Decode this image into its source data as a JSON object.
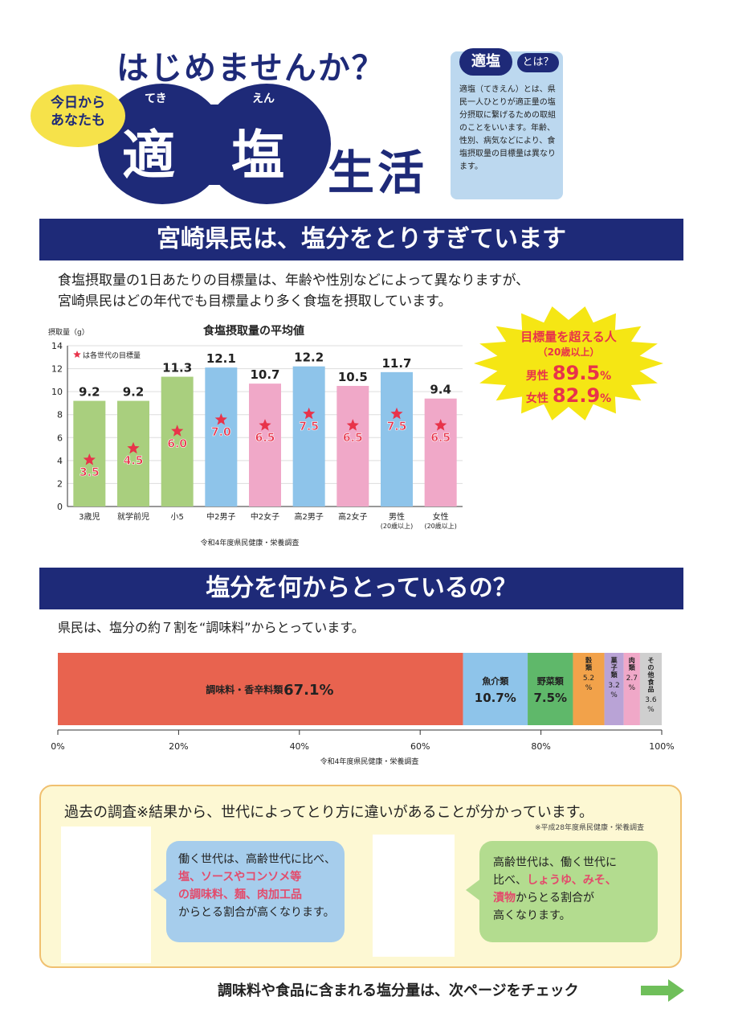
{
  "header": {
    "headline": "はじめませんか？",
    "bubble_line1": "今日から",
    "bubble_line2": "あなたも",
    "title_kanji1": "適",
    "title_kanji2": "塩",
    "ruby1": "てき",
    "ruby2": "えん",
    "title_suffix": "生活"
  },
  "definition": {
    "pill": "適塩",
    "toha": "とは？",
    "text": "適塩（てきえん）とは、県民一人ひとりが適正量の塩分摂取に繋げるための取組のことをいいます。年齢、性別、病気などにより、食塩摂取量の目標量は異なります。"
  },
  "section1": {
    "banner": "宮崎県民は、塩分をとりすぎています",
    "lead1": "食塩摂取量の1日あたりの目標量は、年齢や性別などによって異なりますが、",
    "lead2": "宮崎県民はどの年代でも目標量より多く食塩を摂取しています。"
  },
  "burst": {
    "title": "目標量を超える人",
    "sub": "（20歳以上）",
    "male_label": "男性",
    "male_value": "89.5",
    "female_label": "女性",
    "female_value": "82.9",
    "pct": "%",
    "color": "#f5e614"
  },
  "chart_data": [
    {
      "type": "bar",
      "title": "食塩摂取量の平均値",
      "ylabel": "摂取量（g）",
      "ylim": [
        0,
        14
      ],
      "yticks": [
        0,
        2,
        4,
        6,
        8,
        10,
        12,
        14
      ],
      "legend": "★は各世代の目標量",
      "categories": [
        "3歳児",
        "就学前児",
        "小5",
        "中2男子",
        "中2女子",
        "高2男子",
        "高2女子",
        "男性\n(20歳以上)",
        "女性\n(20歳以上)"
      ],
      "values": [
        9.2,
        9.2,
        11.3,
        12.1,
        10.7,
        12.2,
        10.5,
        11.7,
        9.4
      ],
      "targets": [
        3.5,
        4.5,
        6.0,
        7.0,
        6.5,
        7.5,
        6.5,
        7.5,
        6.5
      ],
      "colors": [
        "#a9cf7e",
        "#a9cf7e",
        "#a9cf7e",
        "#8ec4ea",
        "#f0a8c8",
        "#8ec4ea",
        "#f0a8c8",
        "#8ec4ea",
        "#f0a8c8"
      ],
      "source": "令和4年度県民健康・栄養調査"
    },
    {
      "type": "bar",
      "orientation": "stacked-horizontal",
      "categories": [
        "調味料・香辛料類",
        "魚介類",
        "野菜類",
        "穀類",
        "菓子類",
        "肉類",
        "その他食品"
      ],
      "values": [
        67.1,
        10.7,
        7.5,
        5.2,
        3.2,
        2.7,
        3.6
      ],
      "colors": [
        "#e8634f",
        "#8ec4ea",
        "#5fb86a",
        "#f2a24a",
        "#b9a3d6",
        "#f0a8c8",
        "#cfcfcf"
      ],
      "xticks": [
        "0%",
        "20%",
        "40%",
        "60%",
        "80%",
        "100%"
      ],
      "source": "令和4年度県民健康・栄養調査"
    }
  ],
  "section2": {
    "banner": "塩分を何からとっているの？",
    "lead": "県民は、塩分の約７割を“調味料”からとっています。"
  },
  "panel": {
    "title": "過去の調査※結果から、世代によってとり方に違いがあることが分かっています。",
    "note": "※平成28年度県民健康・栄養調査",
    "left": {
      "l1": "働く世代は、高齢世代に比べ、",
      "l2": "塩、ソースやコンソメ等",
      "l3": "の調味料、麺、肉加工品",
      "l4": "からとる割合が高くなります。"
    },
    "right": {
      "l1": "高齢世代は、働く世代に",
      "l2a": "比べ、",
      "l2b": "しょうゆ、みそ、",
      "l3a": "漬物",
      "l3b": "からとる割合が",
      "l4": "高くなります。"
    }
  },
  "footer": {
    "text": "調味料や食品に含まれる塩分量は、次ページをチェック"
  }
}
